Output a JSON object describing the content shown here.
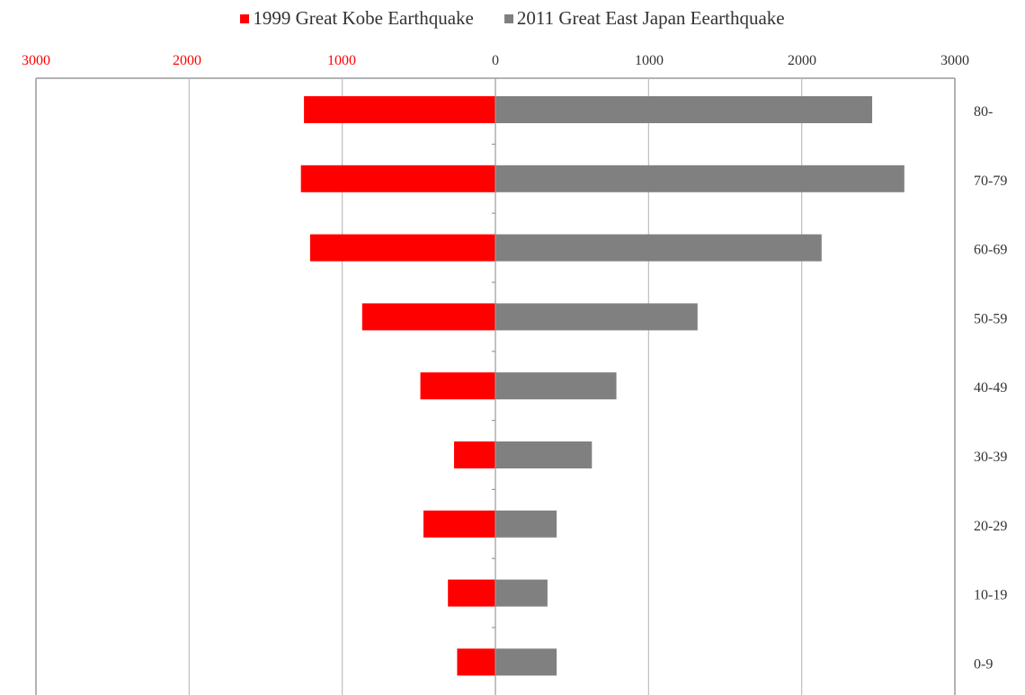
{
  "chart_data": {
    "type": "bar",
    "orientation": "horizontal-diverging",
    "categories": [
      "80-",
      "70-79",
      "60-69",
      "50-59",
      "40-49",
      "30-39",
      "20-29",
      "10-19",
      "0-9"
    ],
    "series": [
      {
        "name": "1999 Great Kobe Earthquake",
        "color": "#ff0000",
        "direction": "left",
        "values": [
          1250,
          1270,
          1210,
          870,
          490,
          270,
          470,
          310,
          250
        ]
      },
      {
        "name": "2011 Great East Japan Eearthquake",
        "color": "#808080",
        "direction": "right",
        "values": [
          2460,
          2670,
          2130,
          1320,
          790,
          630,
          400,
          340,
          400
        ]
      }
    ],
    "top_ticks_left": [
      "3000",
      "2000",
      "1000"
    ],
    "top_ticks_right": [
      "0",
      "1000",
      "2000",
      "3000"
    ],
    "tick_colors": {
      "left": "#ff0000",
      "right": "#333333"
    },
    "xlim": [
      -3000,
      3000
    ],
    "grid": "vertical",
    "legend": "top-center"
  }
}
